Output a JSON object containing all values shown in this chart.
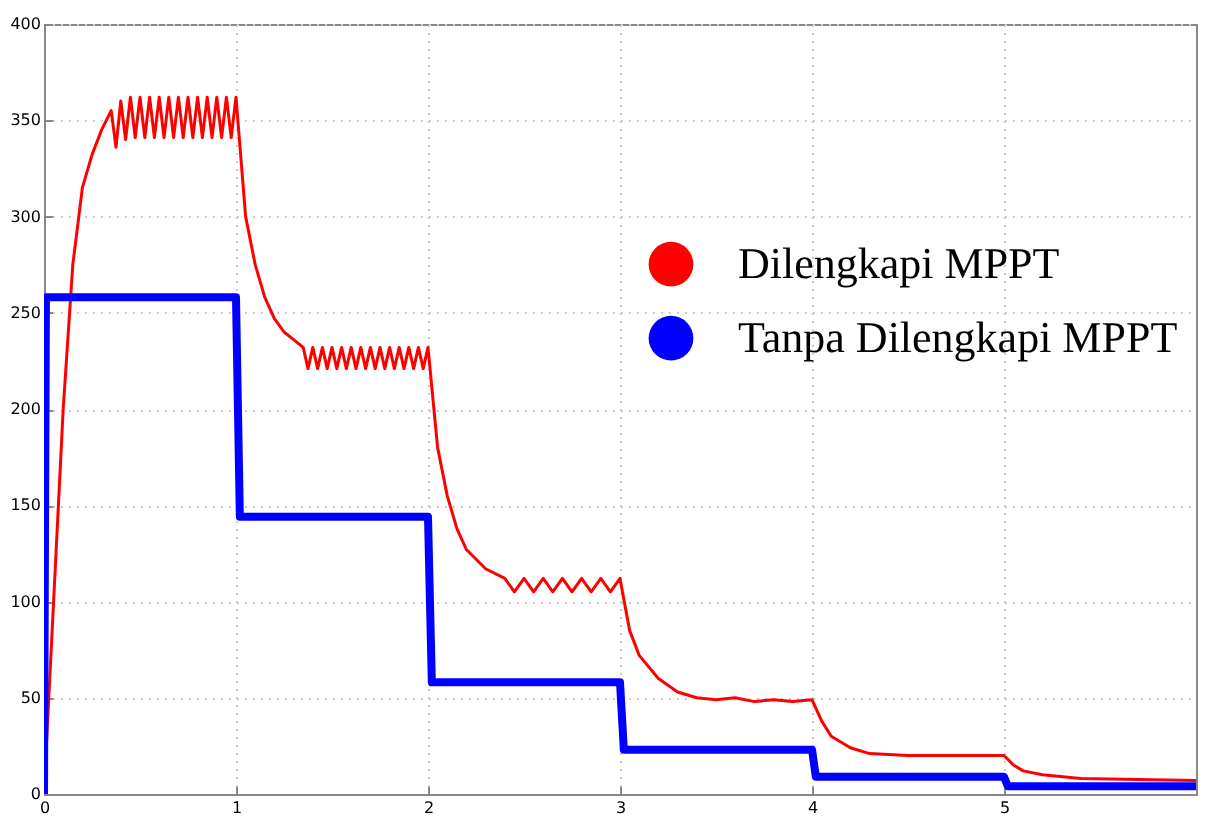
{
  "chart_data": {
    "type": "line",
    "xlim": [
      0,
      6
    ],
    "xticks": [
      0,
      1,
      2,
      3,
      4,
      5
    ],
    "ylim": [
      0,
      400
    ],
    "yticks": [
      0,
      50,
      100,
      150,
      200,
      250,
      300,
      350,
      400
    ],
    "grid": true,
    "legend": "right",
    "marker": "none",
    "line_style": "solid",
    "series": [
      {
        "name": "Dilengkapi MPPT",
        "color": "#ff0000",
        "x": [
          0,
          0.05,
          0.1,
          0.15,
          0.2,
          0.25,
          0.3,
          0.35,
          0.375,
          0.4,
          0.425,
          0.45,
          0.475,
          0.5,
          0.525,
          0.55,
          0.575,
          0.6,
          0.625,
          0.65,
          0.675,
          0.7,
          0.725,
          0.75,
          0.775,
          0.8,
          0.825,
          0.85,
          0.875,
          0.9,
          0.925,
          0.95,
          0.975,
          1.0,
          1.05,
          1.1,
          1.15,
          1.2,
          1.25,
          1.3,
          1.35,
          1.375,
          1.4,
          1.425,
          1.45,
          1.475,
          1.5,
          1.525,
          1.55,
          1.575,
          1.6,
          1.625,
          1.65,
          1.675,
          1.7,
          1.725,
          1.75,
          1.775,
          1.8,
          1.825,
          1.85,
          1.875,
          1.9,
          1.925,
          1.95,
          1.975,
          2.0,
          2.05,
          2.1,
          2.15,
          2.2,
          2.3,
          2.4,
          2.45,
          2.5,
          2.55,
          2.6,
          2.65,
          2.7,
          2.75,
          2.8,
          2.85,
          2.9,
          2.95,
          3.0,
          3.05,
          3.1,
          3.2,
          3.3,
          3.4,
          3.5,
          3.6,
          3.7,
          3.8,
          3.9,
          4.0,
          4.05,
          4.1,
          4.2,
          4.3,
          4.5,
          4.8,
          5.0,
          5.05,
          5.1,
          5.2,
          5.4,
          6.0
        ],
        "values": [
          0,
          100,
          200,
          275,
          315,
          332,
          345,
          355,
          336,
          360,
          340,
          362,
          341,
          362,
          341,
          362,
          341,
          362,
          341,
          362,
          341,
          362,
          341,
          362,
          341,
          362,
          341,
          362,
          341,
          362,
          341,
          362,
          341,
          362,
          300,
          275,
          258,
          247,
          240,
          236,
          232,
          221,
          232,
          221,
          232,
          221,
          232,
          221,
          232,
          221,
          232,
          221,
          232,
          221,
          232,
          221,
          232,
          221,
          232,
          221,
          232,
          221,
          232,
          221,
          232,
          221,
          232,
          180,
          155,
          138,
          127,
          117,
          112,
          105,
          112,
          105,
          112,
          105,
          112,
          105,
          112,
          105,
          112,
          105,
          112,
          85,
          72,
          60,
          53,
          50,
          49,
          50,
          48,
          49,
          48,
          49,
          38,
          30,
          24,
          21,
          20,
          20,
          20,
          15,
          12,
          10,
          8,
          7
        ]
      },
      {
        "name": "Tanpa Dilengkapi MPPT",
        "color": "#0000ff",
        "x": [
          0,
          0.01,
          1.0,
          1.02,
          2.0,
          2.02,
          3.0,
          3.02,
          4.0,
          4.02,
          5.0,
          5.02,
          6.0
        ],
        "values": [
          0,
          258,
          258,
          144,
          144,
          58,
          58,
          23,
          23,
          9,
          9,
          4,
          4
        ]
      }
    ]
  }
}
